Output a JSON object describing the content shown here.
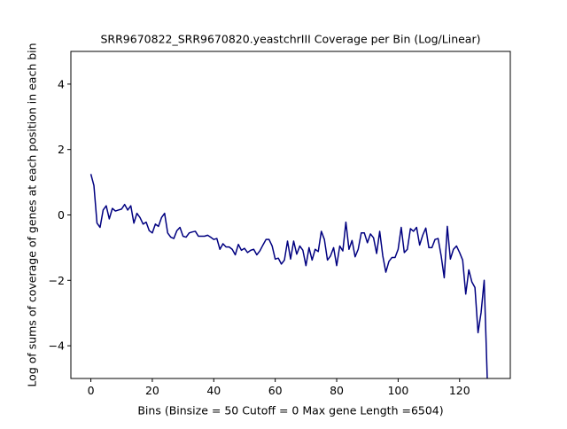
{
  "chart_data": {
    "type": "line",
    "title": "SRR9670822_SRR9670820.yeastchrIII Coverage per Bin (Log/Linear)",
    "xlabel": "Bins  (Binsize = 50 Cutoff = 0 Max gene Length =6504)",
    "ylabel": "Log of sums of coverage of genes at each position in each bin",
    "xlim": [
      -6.5,
      136.5
    ],
    "ylim": [
      -5,
      5
    ],
    "xticks": [
      0,
      20,
      40,
      60,
      80,
      100,
      120
    ],
    "yticks": [
      -4,
      -2,
      0,
      2,
      4
    ],
    "grid": false,
    "legend": "none",
    "series": [
      {
        "color": "#000080",
        "x": [
          0,
          1,
          2,
          3,
          4,
          5,
          6,
          7,
          8,
          9,
          10,
          11,
          12,
          13,
          14,
          15,
          16,
          17,
          18,
          19,
          20,
          21,
          22,
          23,
          24,
          25,
          26,
          27,
          28,
          29,
          30,
          31,
          32,
          33,
          34,
          35,
          36,
          37,
          38,
          39,
          40,
          41,
          42,
          43,
          44,
          45,
          46,
          47,
          48,
          49,
          50,
          51,
          52,
          53,
          54,
          55,
          56,
          57,
          58,
          59,
          60,
          61,
          62,
          63,
          64,
          65,
          66,
          67,
          68,
          69,
          70,
          71,
          72,
          73,
          74,
          75,
          76,
          77,
          78,
          79,
          80,
          81,
          82,
          83,
          84,
          85,
          86,
          87,
          88,
          89,
          90,
          91,
          92,
          93,
          94,
          95,
          96,
          97,
          98,
          99,
          100,
          101,
          102,
          103,
          104,
          105,
          106,
          107,
          108,
          109,
          110,
          111,
          112,
          113,
          114,
          115,
          116,
          117,
          118,
          119,
          120,
          121,
          122,
          123,
          124,
          125,
          126,
          127,
          128,
          129
        ],
        "y": [
          1.25,
          0.9,
          -0.25,
          -0.38,
          0.15,
          0.28,
          -0.12,
          0.2,
          0.12,
          0.15,
          0.18,
          0.32,
          0.15,
          0.28,
          -0.25,
          0.05,
          -0.08,
          -0.28,
          -0.22,
          -0.48,
          -0.55,
          -0.28,
          -0.35,
          -0.08,
          0.05,
          -0.55,
          -0.68,
          -0.72,
          -0.48,
          -0.38,
          -0.65,
          -0.68,
          -0.55,
          -0.52,
          -0.5,
          -0.65,
          -0.65,
          -0.65,
          -0.62,
          -0.68,
          -0.75,
          -0.72,
          -1.05,
          -0.88,
          -0.98,
          -0.98,
          -1.05,
          -1.22,
          -0.9,
          -1.08,
          -1.02,
          -1.15,
          -1.08,
          -1.05,
          -1.22,
          -1.1,
          -0.92,
          -0.75,
          -0.75,
          -0.95,
          -1.35,
          -1.32,
          -1.5,
          -1.38,
          -0.8,
          -1.35,
          -0.8,
          -1.2,
          -0.95,
          -1.08,
          -1.55,
          -1.0,
          -1.38,
          -1.05,
          -1.12,
          -0.5,
          -0.75,
          -1.38,
          -1.25,
          -1.0,
          -1.55,
          -0.95,
          -1.1,
          -0.22,
          -1.05,
          -0.78,
          -1.28,
          -1.05,
          -0.55,
          -0.55,
          -0.85,
          -0.58,
          -0.7,
          -1.18,
          -0.5,
          -1.25,
          -1.75,
          -1.42,
          -1.3,
          -1.3,
          -1.05,
          -0.38,
          -1.15,
          -1.05,
          -0.42,
          -0.5,
          -0.38,
          -0.92,
          -0.62,
          -0.4,
          -1.0,
          -1.0,
          -0.75,
          -0.72,
          -1.25,
          -1.92,
          -0.35,
          -1.35,
          -1.05,
          -0.95,
          -1.15,
          -1.38,
          -2.42,
          -1.68,
          -2.05,
          -2.22,
          -3.6,
          -2.98,
          -2.0,
          -5.0
        ]
      }
    ]
  }
}
